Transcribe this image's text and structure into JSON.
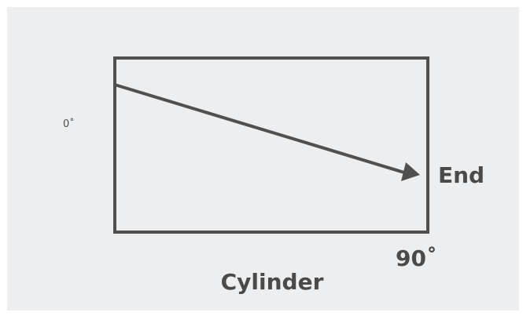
{
  "labels": {
    "start_angle": "0˚",
    "end": "End",
    "end_angle": "90˚",
    "caption": "Cylinder"
  }
}
